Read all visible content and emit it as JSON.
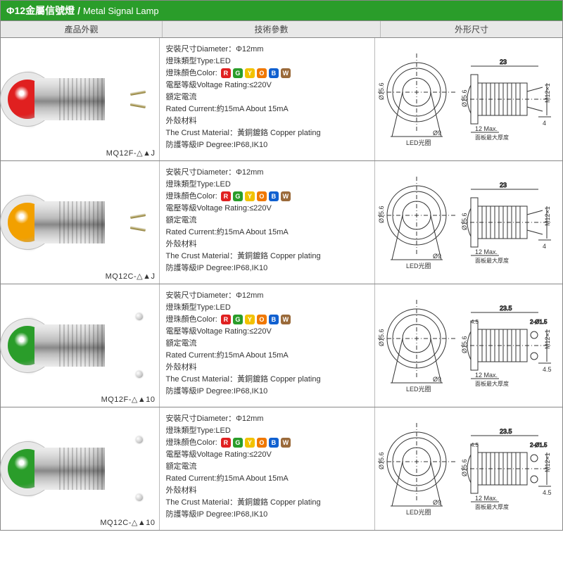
{
  "title": {
    "zh": "Φ12金屬信號燈",
    "sep": "/",
    "en": "Metal Signal Lamp"
  },
  "headers": {
    "img": "產品外觀",
    "spec": "技術參數",
    "dim": "外形尺寸"
  },
  "color_chips": [
    {
      "letter": "R",
      "bg": "#e02020"
    },
    {
      "letter": "G",
      "bg": "#2a9d2a"
    },
    {
      "letter": "Y",
      "bg": "#f2c200"
    },
    {
      "letter": "O",
      "bg": "#f07800"
    },
    {
      "letter": "B",
      "bg": "#1060d0"
    },
    {
      "letter": "W",
      "bg": "#9a6a3a"
    }
  ],
  "spec_lines": {
    "diameter": "安裝尺寸Diameter：Φ12mm",
    "type": "燈珠類型Type:LED",
    "color_label": "燈珠顏色Color:",
    "voltage": "電壓等級Voltage Rating:≤220V",
    "rated_current_label": "額定電流",
    "rated_current": "Rated Current:約15mA   About 15mA",
    "crust_label": "外殼材料",
    "crust": "The Crust Material：黃銅鍍鉻 Copper plating",
    "ip": "防護等級IP Degree:IP68,IK10"
  },
  "drawing": {
    "front": {
      "outer_d": "Ø15.6",
      "led_d": "Ø9",
      "led_note": "LED光圈"
    },
    "side": {
      "total_len": "23",
      "thread": "M12×1",
      "flange_w": "12  Max.",
      "flange_note": "面板最大厚度",
      "tail": "4",
      "tail_alt": "4.5",
      "screw_note": "2-Ø1.5",
      "head_h": "4.5"
    }
  },
  "rows": [
    {
      "model": "MQ12F-△▲J",
      "lens_color": "#e02020",
      "terminals": "pins",
      "tail": "4"
    },
    {
      "model": "MQ12C-△▲J",
      "lens_color": "#f2a000",
      "terminals": "pins",
      "tail": "4"
    },
    {
      "model": "MQ12F-△▲10",
      "lens_color": "#2a9d2a",
      "terminals": "screws",
      "tail": "4.5"
    },
    {
      "model": "MQ12C-△▲10",
      "lens_color": "#2a9d2a",
      "terminals": "screws",
      "tail": "4.5"
    }
  ]
}
